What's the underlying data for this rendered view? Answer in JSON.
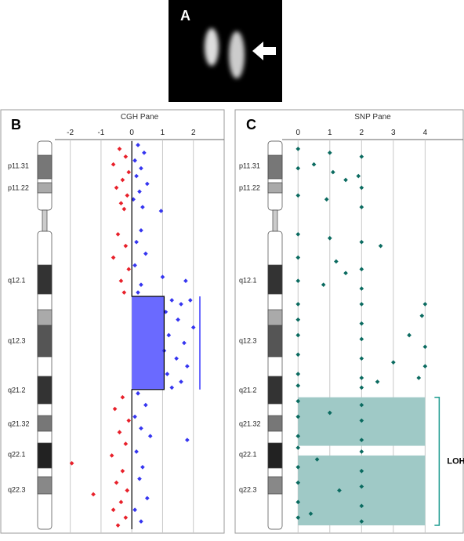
{
  "panel_a": {
    "label": "A"
  },
  "chart_data": [
    {
      "type": "scatter",
      "panel_label": "B",
      "title": "CGH Pane",
      "xlim": [
        -2.5,
        3
      ],
      "xticks": [
        -2,
        -1,
        0,
        1,
        2
      ],
      "ylim": [
        0,
        100
      ],
      "grid": true,
      "bands": [
        "p11.31",
        "p11.22",
        "q12.1",
        "q12.3",
        "q21.2",
        "q21.32",
        "q22.1",
        "q22.3"
      ],
      "series": [
        {
          "color": "#e8202a",
          "values": [
            -0.4,
            -0.2,
            -0.6,
            -0.1,
            -0.3,
            -0.5,
            -0.15,
            -0.35,
            -0.25,
            -0.45,
            -0.2,
            -0.6,
            -0.1,
            -0.35,
            -0.25,
            -0.3,
            -0.55,
            -0.1,
            -0.4,
            -0.2,
            -0.65,
            -1.95,
            -0.3,
            -0.5,
            -0.15,
            -1.25,
            -0.35,
            -0.6,
            -0.2,
            -0.45
          ],
          "y": [
            2,
            4,
            6,
            8,
            10,
            12,
            14,
            16,
            17.5,
            24,
            27,
            30,
            33,
            36,
            39,
            66,
            69,
            72,
            75,
            78,
            81,
            83,
            85,
            88,
            90,
            91,
            93,
            95,
            97,
            99
          ]
        },
        {
          "color": "#3535f0",
          "values": [
            0.2,
            0.4,
            0.1,
            0.3,
            0.15,
            0.5,
            0.25,
            0.05,
            0.35,
            0.95,
            0.3,
            0.15,
            0.45,
            0.1,
            1.0,
            0.3,
            1.75,
            0.2,
            1.3,
            1.6,
            1.9,
            1.1,
            1.5,
            2.0,
            1.2,
            1.7,
            1.05,
            1.45,
            1.8,
            1.15,
            1.6,
            1.3,
            0.2,
            0.45,
            0.1,
            0.3,
            0.6,
            1.8,
            0.15,
            0.35,
            0.25,
            0.5,
            0.1,
            0.3
          ],
          "y": [
            1,
            3,
            5,
            7,
            9,
            11,
            13,
            15,
            17,
            18,
            23,
            26,
            29,
            32,
            35,
            37,
            36,
            39,
            41,
            42,
            41,
            44,
            46,
            48,
            50,
            52,
            54,
            56,
            58,
            60,
            62,
            63.5,
            65,
            68,
            71,
            74,
            76,
            77,
            80,
            84,
            87,
            92,
            95,
            98
          ]
        }
      ],
      "region": {
        "value": 1.05,
        "start": 40,
        "end": 64,
        "color": "#6a6aff"
      },
      "segment": {
        "color": "#000000",
        "values": [
          0,
          0,
          1.05,
          1.05,
          0,
          0
        ],
        "y": [
          0,
          40,
          40,
          64,
          64,
          100
        ]
      }
    },
    {
      "type": "scatter",
      "panel_label": "C",
      "title": "SNP Pane",
      "xlim": [
        -0.5,
        5.2
      ],
      "xticks": [
        0,
        1,
        2,
        3,
        4
      ],
      "ylim": [
        0,
        100
      ],
      "grid": true,
      "bands": [
        "p11.31",
        "p11.22",
        "q12.1",
        "q12.3",
        "q21.2",
        "q21.32",
        "q22.1",
        "q22.3"
      ],
      "series": [
        {
          "color": "#0b6b60",
          "values": [
            0,
            1,
            2,
            0,
            1.1,
            1.9,
            2,
            0,
            0.9,
            2,
            1.5,
            0.5,
            0,
            1,
            2,
            0,
            1.2,
            2,
            0,
            0.8,
            2,
            2.6,
            1.5,
            0,
            2,
            4,
            0,
            2,
            3.9,
            0,
            2,
            3.5,
            4,
            0,
            2,
            3,
            4,
            0,
            2,
            2.5,
            3.8,
            0,
            2,
            0,
            2,
            0,
            2,
            1,
            0,
            2,
            0,
            2,
            0.6,
            0,
            2,
            0,
            2,
            1.3,
            0,
            2,
            0,
            2,
            0.4
          ],
          "y": [
            2,
            3,
            4,
            7,
            8,
            9,
            12,
            14,
            15,
            17,
            10,
            6,
            24,
            25,
            26,
            30,
            31,
            33,
            36,
            37,
            38,
            27,
            34,
            42,
            42,
            42,
            46,
            47,
            45,
            50,
            51,
            50,
            53,
            55,
            56,
            57,
            58,
            60,
            61,
            62,
            61,
            63,
            63.5,
            67,
            68,
            71,
            72,
            70,
            76,
            77,
            79,
            80,
            82,
            84,
            85,
            88,
            89,
            90,
            93,
            94,
            97,
            98,
            96
          ]
        }
      ],
      "loh": {
        "label": "LOH",
        "color": "#9fc9c6",
        "from": 0,
        "to": 4,
        "regions": [
          [
            66,
            78.5
          ],
          [
            81,
            99
          ]
        ]
      }
    }
  ]
}
